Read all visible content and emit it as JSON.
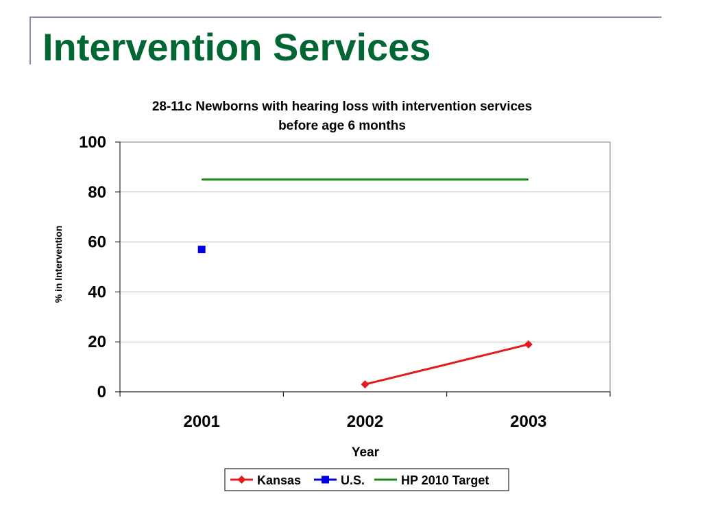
{
  "slide": {
    "title": "Intervention Services"
  },
  "chart_data": {
    "type": "line",
    "title_lines": [
      "28-11c Newborns with hearing loss with intervention services",
      "before age 6 months"
    ],
    "xlabel": "Year",
    "ylabel": "% in Intervention",
    "categories": [
      "2001",
      "2002",
      "2003"
    ],
    "ylim": [
      0,
      100
    ],
    "yticks": [
      0,
      20,
      40,
      60,
      80,
      100
    ],
    "grid": true,
    "legend_position": "bottom",
    "series": [
      {
        "name": "Kansas",
        "values": [
          null,
          3,
          19
        ],
        "color": "#e41a1c",
        "marker": "diamond",
        "line": true
      },
      {
        "name": "U.S.",
        "values": [
          57,
          null,
          null
        ],
        "color": "#0000e0",
        "marker": "square",
        "line": true
      },
      {
        "name": "HP 2010 Target",
        "values": [
          85,
          85,
          85
        ],
        "color": "#1a8a1a",
        "marker": "none",
        "line": true
      }
    ]
  }
}
